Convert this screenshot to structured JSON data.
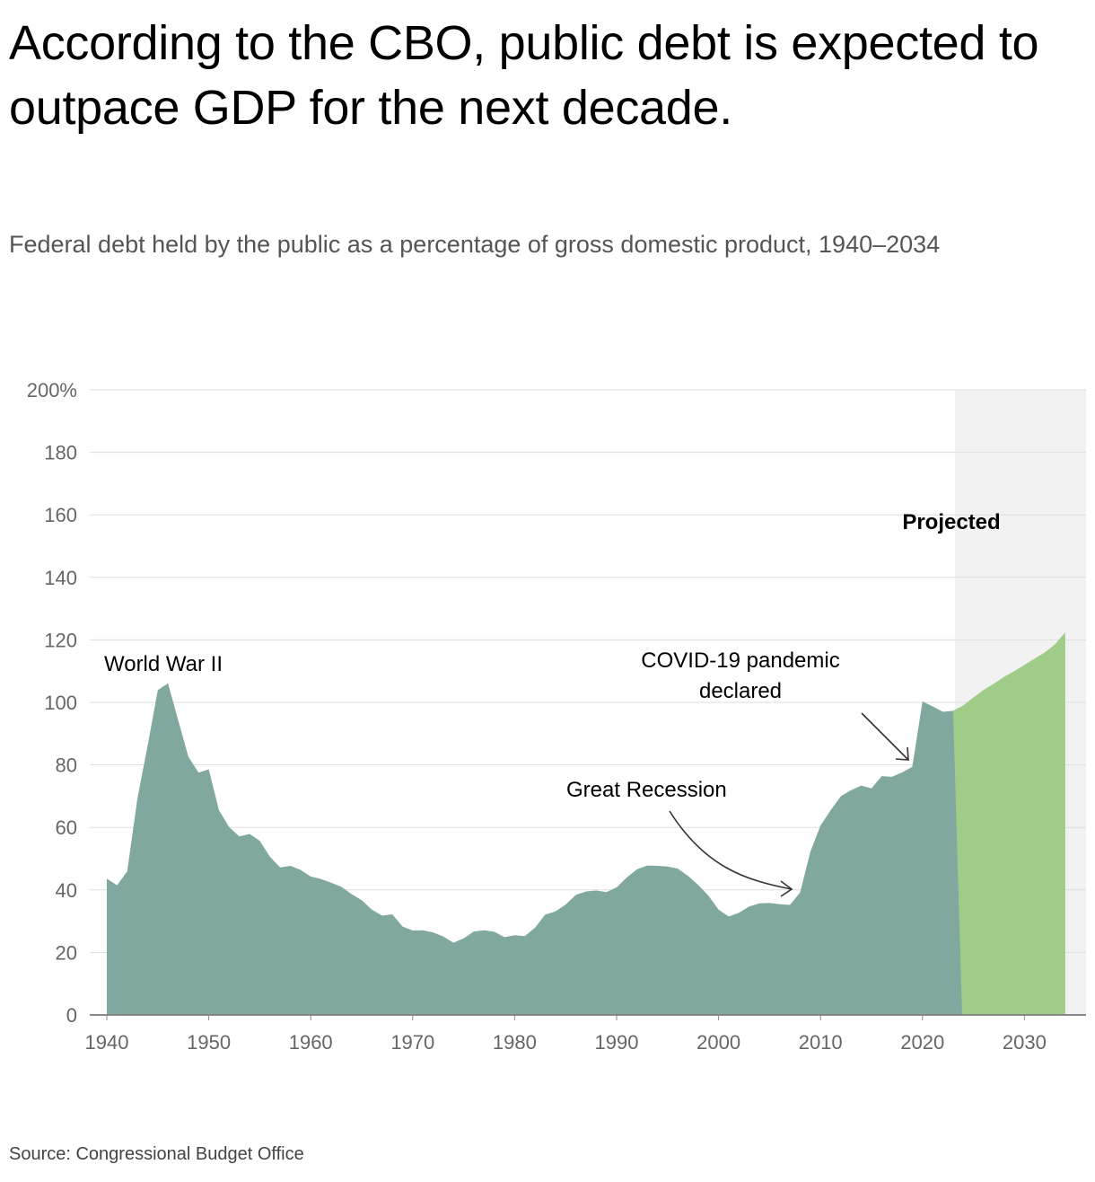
{
  "title": "According to the CBO, public debt is expected to outpace GDP for the next decade.",
  "subtitle": "Federal debt held by the public as a percentage of gross domestic product, 1940–2034",
  "source": "Source: Congressional Budget Office",
  "colors": {
    "historical": "#80a89e",
    "projected": "#9fcc88",
    "projected_band": "#f2f2f2",
    "grid": "#dddddd"
  },
  "chart_data": {
    "type": "area",
    "title": "According to the CBO, public debt is expected to outpace GDP for the next decade.",
    "xlabel": "",
    "ylabel": "",
    "xlim": [
      1938,
      2036
    ],
    "ylim": [
      0,
      200
    ],
    "grid": true,
    "y_ticks": [
      "0",
      "20",
      "40",
      "60",
      "80",
      "100",
      "120",
      "140",
      "160",
      "180",
      "200%"
    ],
    "y_tick_values": [
      0,
      20,
      40,
      60,
      80,
      100,
      120,
      140,
      160,
      180,
      200
    ],
    "x_ticks": [
      "1940",
      "1950",
      "1960",
      "1970",
      "1980",
      "1990",
      "2000",
      "2010",
      "2020",
      "2030"
    ],
    "x_tick_values": [
      1940,
      1950,
      1960,
      1970,
      1980,
      1990,
      2000,
      2010,
      2020,
      2030
    ],
    "projected_label": "Projected",
    "projected_start": 2023,
    "series": [
      {
        "key": "historical",
        "x": [
          1940,
          1941,
          1942,
          1943,
          1944,
          1945,
          1946,
          1947,
          1948,
          1949,
          1950,
          1951,
          1952,
          1953,
          1954,
          1955,
          1956,
          1957,
          1958,
          1959,
          1960,
          1961,
          1962,
          1963,
          1964,
          1965,
          1966,
          1967,
          1968,
          1969,
          1970,
          1971,
          1972,
          1973,
          1974,
          1975,
          1976,
          1977,
          1978,
          1979,
          1980,
          1981,
          1982,
          1983,
          1984,
          1985,
          1986,
          1987,
          1988,
          1989,
          1990,
          1991,
          1992,
          1993,
          1994,
          1995,
          1996,
          1997,
          1998,
          1999,
          2000,
          2001,
          2002,
          2003,
          2004,
          2005,
          2006,
          2007,
          2008,
          2009,
          2010,
          2011,
          2012,
          2013,
          2014,
          2015,
          2016,
          2017,
          2018,
          2019,
          2020,
          2021,
          2022,
          2023
        ],
        "values": [
          43.6,
          41.5,
          45.9,
          69.2,
          86.1,
          103.9,
          106.1,
          94.3,
          82.6,
          77.5,
          78.6,
          65.5,
          60.1,
          57.1,
          57.9,
          55.7,
          50.6,
          47.2,
          47.7,
          46.4,
          44.3,
          43.5,
          42.3,
          41.0,
          38.7,
          36.7,
          33.7,
          31.8,
          32.2,
          28.3,
          27.0,
          27.1,
          26.4,
          25.1,
          23.1,
          24.5,
          26.7,
          27.1,
          26.6,
          24.9,
          25.5,
          25.2,
          27.9,
          32.1,
          33.1,
          35.3,
          38.4,
          39.5,
          39.8,
          39.3,
          40.8,
          44.0,
          46.6,
          47.8,
          47.7,
          47.5,
          46.8,
          44.5,
          41.6,
          38.2,
          33.7,
          31.5,
          32.7,
          34.7,
          35.7,
          35.8,
          35.4,
          35.2,
          39.2,
          52.2,
          60.6,
          65.5,
          70.0,
          71.9,
          73.4,
          72.5,
          76.4,
          76.2,
          77.6,
          79.4,
          100.3,
          98.7,
          97.0,
          97.3
        ]
      },
      {
        "key": "projected",
        "x": [
          2023,
          2024,
          2025,
          2026,
          2027,
          2028,
          2029,
          2030,
          2031,
          2032,
          2033,
          2034
        ],
        "values": [
          97.3,
          99.0,
          101.6,
          104.0,
          106.0,
          108.2,
          110.0,
          112.0,
          114.0,
          116.0,
          118.6,
          122.4
        ]
      }
    ],
    "annotations": [
      {
        "text": "World War II",
        "x": 1946,
        "y": 106
      },
      {
        "text": "COVID-19 pandemic declared",
        "lines": [
          "COVID-19 pandemic",
          "declared"
        ],
        "x": 2020,
        "y": 80
      },
      {
        "text": "Great Recession",
        "x": 2008,
        "y": 40
      }
    ]
  }
}
